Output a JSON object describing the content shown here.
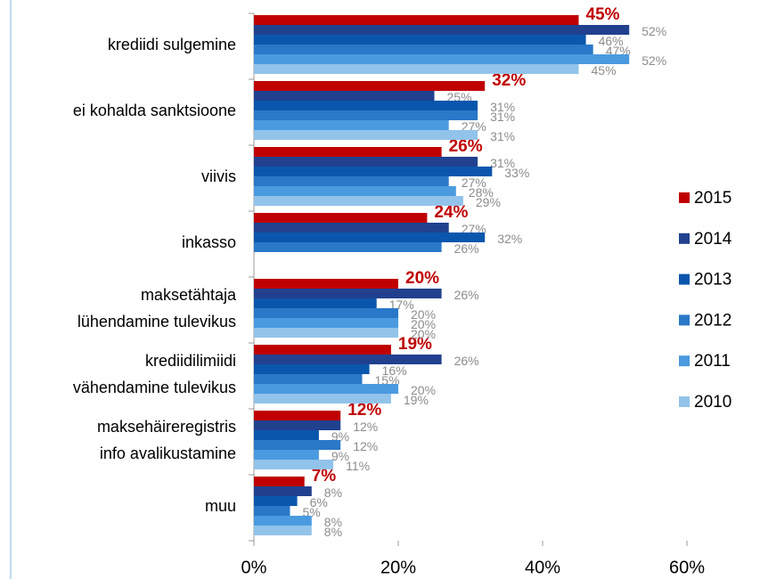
{
  "chart_data": {
    "type": "bar",
    "orientation": "horizontal",
    "categories": [
      "krediidi sulgemine",
      "ei kohalda sanktsioone",
      "viivis",
      "inkasso",
      "maksetähtaja\nlühendamine tulevikus",
      "krediidilimiidi\nvähendamine tulevikus",
      "maksehäireregistris\ninfo avalikustamine",
      "muu"
    ],
    "series": [
      {
        "name": "2015",
        "color": "#c00000",
        "values": [
          45,
          32,
          26,
          24,
          20,
          19,
          12,
          7
        ],
        "value_labels": [
          "45%",
          "32%",
          "26%",
          "24%",
          "20%",
          "19%",
          "12%",
          "7%"
        ]
      },
      {
        "name": "2014",
        "color": "#21418f",
        "values": [
          52,
          25,
          31,
          27,
          26,
          26,
          12,
          8
        ],
        "value_labels": [
          "52%",
          "25%",
          "31%",
          "27%",
          "26%",
          "26%",
          "12%",
          "8%"
        ]
      },
      {
        "name": "2013",
        "color": "#0b56ad",
        "values": [
          46,
          31,
          33,
          32,
          17,
          16,
          9,
          6
        ],
        "value_labels": [
          "46%",
          "31%",
          "33%",
          "32%",
          "17%",
          "16%",
          "9%",
          "6%"
        ]
      },
      {
        "name": "2012",
        "color": "#2a78c8",
        "values": [
          47,
          31,
          27,
          26,
          20,
          15,
          12,
          5
        ],
        "value_labels": [
          "47%",
          "31%",
          "27%",
          "26%",
          "20%",
          "15%",
          "12%",
          "5%"
        ]
      },
      {
        "name": "2011",
        "color": "#4a9ae0",
        "values": [
          52,
          27,
          28,
          null,
          20,
          20,
          9,
          8
        ],
        "value_labels": [
          "52%",
          "27%",
          "28%",
          null,
          "20%",
          "20%",
          "9%",
          "8%"
        ]
      },
      {
        "name": "2010",
        "color": "#92c3ea",
        "values": [
          45,
          31,
          29,
          null,
          20,
          19,
          11,
          8
        ],
        "value_labels": [
          "45%",
          "31%",
          "29%",
          null,
          "20%",
          "19%",
          "11%",
          "8%"
        ]
      }
    ],
    "xlim": [
      0,
      60
    ],
    "xticks": [
      {
        "value": 0,
        "label": "0%"
      },
      {
        "value": 20,
        "label": "20%"
      },
      {
        "value": 40,
        "label": "40%"
      },
      {
        "value": 60,
        "label": "60%"
      }
    ],
    "legend": "right"
  }
}
